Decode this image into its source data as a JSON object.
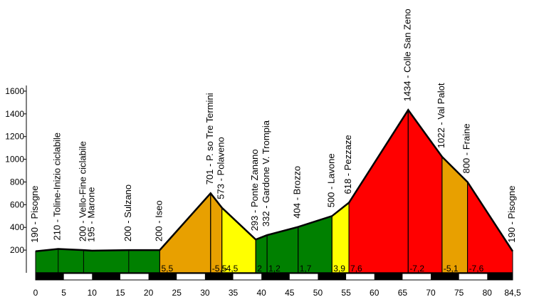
{
  "chart_data": {
    "type": "area",
    "xlim": [
      0,
      84.5
    ],
    "ylim": [
      0,
      1600
    ],
    "y_ticks": [
      200,
      400,
      600,
      800,
      1000,
      1200,
      1400,
      1600
    ],
    "x_ticks": [
      "0",
      "5",
      "10",
      "15",
      "20",
      "25",
      "30",
      "35",
      "40",
      "45",
      "50",
      "55",
      "60",
      "65",
      "70",
      "75",
      "80",
      "84,5"
    ],
    "x_tick_values": [
      0,
      5,
      10,
      15,
      20,
      25,
      30,
      35,
      40,
      45,
      50,
      55,
      60,
      65,
      70,
      75,
      80,
      84.5
    ],
    "colors": {
      "green": "#008000",
      "orange": "#E8A000",
      "yellow": "#FFFF00",
      "red": "#FF0000"
    },
    "profile": [
      {
        "km": 0,
        "alt": 190
      },
      {
        "km": 4,
        "alt": 210
      },
      {
        "km": 8.5,
        "alt": 200
      },
      {
        "km": 10,
        "alt": 195
      },
      {
        "km": 16.5,
        "alt": 200
      },
      {
        "km": 22,
        "alt": 200
      },
      {
        "km": 31,
        "alt": 701
      },
      {
        "km": 33,
        "alt": 573
      },
      {
        "km": 39,
        "alt": 293
      },
      {
        "km": 41,
        "alt": 332
      },
      {
        "km": 46.5,
        "alt": 404
      },
      {
        "km": 52.5,
        "alt": 500
      },
      {
        "km": 55.5,
        "alt": 618
      },
      {
        "km": 66,
        "alt": 1434
      },
      {
        "km": 72,
        "alt": 1022
      },
      {
        "km": 76.5,
        "alt": 800
      },
      {
        "km": 84.5,
        "alt": 190
      }
    ],
    "segments": [
      {
        "from": 0,
        "to": 22,
        "color": "green",
        "grade": ""
      },
      {
        "from": 22,
        "to": 31,
        "color": "orange",
        "grade": "5,5"
      },
      {
        "from": 31,
        "to": 33,
        "color": "orange",
        "grade": "-5,5"
      },
      {
        "from": 33,
        "to": 39,
        "color": "yellow",
        "grade": "-4,5"
      },
      {
        "from": 39,
        "to": 41,
        "color": "green",
        "grade": "2"
      },
      {
        "from": 41,
        "to": 46.5,
        "color": "green",
        "grade": "1,2"
      },
      {
        "from": 46.5,
        "to": 52.5,
        "color": "green",
        "grade": "1,7"
      },
      {
        "from": 52.5,
        "to": 55.5,
        "color": "yellow",
        "grade": "3,9"
      },
      {
        "from": 55.5,
        "to": 66,
        "color": "red",
        "grade": "7,6"
      },
      {
        "from": 66,
        "to": 72,
        "color": "red",
        "grade": "-7,2"
      },
      {
        "from": 72,
        "to": 76.5,
        "color": "orange",
        "grade": "-5,1"
      },
      {
        "from": 76.5,
        "to": 84.5,
        "color": "red",
        "grade": "-7,6"
      }
    ],
    "dividers": [
      4,
      8.5,
      16.5,
      22,
      31,
      33,
      39,
      41,
      46.5,
      52.5,
      55.5,
      66,
      72,
      76.5
    ],
    "annotations": [
      {
        "km": 0,
        "alt": 190,
        "text": "190 - Pisogne"
      },
      {
        "km": 4,
        "alt": 210,
        "text": "210 - Toline-Inizio ciclabile"
      },
      {
        "km": 8.5,
        "alt": 200,
        "text": "200 - Vello-Fine ciclabile"
      },
      {
        "km": 10,
        "alt": 195,
        "text": "195 - Marone"
      },
      {
        "km": 16.5,
        "alt": 200,
        "text": "200 - Sulzano"
      },
      {
        "km": 22,
        "alt": 200,
        "text": "200 - Iseo"
      },
      {
        "km": 31,
        "alt": 701,
        "text": "701 - P. so Tre Termini"
      },
      {
        "km": 33,
        "alt": 573,
        "text": "573 - Polaveno"
      },
      {
        "km": 39,
        "alt": 293,
        "text": "293 - Ponte Zanano"
      },
      {
        "km": 41,
        "alt": 332,
        "text": "332 - Gardone V. Trompia"
      },
      {
        "km": 46.5,
        "alt": 404,
        "text": "404 - Brozzo"
      },
      {
        "km": 52.5,
        "alt": 500,
        "text": "500 - Lavone"
      },
      {
        "km": 55.5,
        "alt": 618,
        "text": "618 - Pezzaze"
      },
      {
        "km": 66,
        "alt": 1434,
        "text": "1434 - Colle San Zeno"
      },
      {
        "km": 72,
        "alt": 1022,
        "text": "1022 - Val Palot"
      },
      {
        "km": 76.5,
        "alt": 800,
        "text": "800 - Fraine"
      },
      {
        "km": 84.5,
        "alt": 190,
        "text": "190 - Pisogne"
      }
    ]
  }
}
